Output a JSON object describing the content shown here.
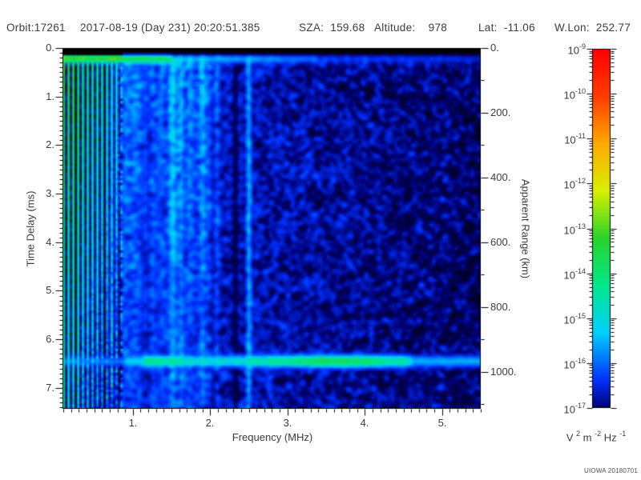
{
  "header": {
    "fields": [
      "Orbit:17261",
      "2017-08-19 (Day 231) 20:20:51.385",
      "SZA:  159.68",
      "Altitude:    978",
      "Lat:  -11.06",
      "W.Lon:  252.77"
    ]
  },
  "footer": {
    "watermark": "UIOWA 20180701"
  },
  "colors": {
    "text": "#3c3c3c",
    "frame": "#000000",
    "plot_background": "#000000"
  },
  "chart_data": {
    "type": "heatmap",
    "subtype": "radar-sounding-ionogram-spectrogram",
    "title": "Orbit:17261  2017-08-19 (Day 231) 20:20:51.385  SZA: 159.68  Altitude: 978  Lat: -11.06  W.Lon: 252.77",
    "grid": false,
    "axes": {
      "x": {
        "label": "Frequency (MHz)",
        "range": [
          0.09,
          5.5
        ],
        "major_ticks": [
          1,
          2,
          3,
          4,
          5
        ],
        "tick_labels": [
          "1.",
          "2.",
          "3.",
          "4.",
          "5."
        ],
        "minor_tick_step": 0.1
      },
      "y_left": {
        "label": "Time Delay (ms)",
        "range": [
          0,
          7.43
        ],
        "direction": "down",
        "major_ticks": [
          0,
          1,
          2,
          3,
          4,
          5,
          6,
          7
        ],
        "tick_labels": [
          "0.",
          "1.",
          "2.",
          "3.",
          "4.",
          "5.",
          "6.",
          "7."
        ],
        "minor_tick_step": 0.1
      },
      "y_right": {
        "label": "Apparent Range (km)",
        "km_per_ms": 150,
        "range_km": [
          0,
          1114
        ],
        "major_ticks_km": [
          0,
          200,
          400,
          600,
          800,
          1000
        ],
        "tick_labels": [
          "0.",
          "200.",
          "400.",
          "600.",
          "800.",
          "1000."
        ],
        "minor_tick_step_km": 100
      }
    },
    "colorbar": {
      "scale": "log",
      "tick_exponents": [
        -9,
        -10,
        -11,
        -12,
        -13,
        -14,
        -15,
        -16,
        -17
      ],
      "units_segments": [
        {
          "t": "V",
          "sup": "2"
        },
        {
          "t": "m",
          "sup": "-2"
        },
        {
          "t": "Hz",
          "sup": "-1"
        }
      ],
      "colormap_stops": [
        {
          "v": 0.0,
          "c": "#000000"
        },
        {
          "v": 0.05,
          "c": "#000070"
        },
        {
          "v": 0.125,
          "c": "#0030ff"
        },
        {
          "v": 0.25,
          "c": "#00d0ff"
        },
        {
          "v": 0.375,
          "c": "#00e88c"
        },
        {
          "v": 0.5,
          "c": "#2ad42a"
        },
        {
          "v": 0.625,
          "c": "#d8f000"
        },
        {
          "v": 0.75,
          "c": "#ffaa00"
        },
        {
          "v": 0.875,
          "c": "#ff3c00"
        },
        {
          "v": 1.0,
          "c": "#ff0000"
        }
      ]
    },
    "features": [
      {
        "type": "blackout",
        "delay_range_ms": [
          0,
          0.13
        ],
        "desc": "black strip across top before first return"
      },
      {
        "type": "horizontal-echo-line",
        "delay_ms": 0.22,
        "sigma_ms": 0.07,
        "desc": "bright green first-echo line, strongest below ~1.5 MHz, fading to faint blue at high frequency"
      },
      {
        "type": "plasma-harmonic-stripes",
        "freq_range_mhz": [
          0.09,
          0.82
        ],
        "desc": "bright green-cyan vertical harmonic stripes spanning all delays at low frequency"
      },
      {
        "type": "diffuse-streaks",
        "freq_range_mhz": [
          0.82,
          2.1
        ],
        "max_delay_ms": 5.2,
        "desc": "diffuse cyan speckled vertical streaks, upper-left quadrant"
      },
      {
        "type": "dark-vertical-line",
        "freq_mhz": 2.33,
        "halfwidth_mhz": 0.035,
        "desc": "dark dropout column near 2.33 MHz"
      },
      {
        "type": "bright-vertical-line",
        "freq_mhz": 2.5,
        "halfwidth_mhz": 0.028,
        "desc": "narrow bright cyan interference line at 2.5 MHz, all delays"
      },
      {
        "type": "surface-echo-band",
        "delay_ms": 6.45,
        "sigma_ms": 0.09,
        "core_freq_range_mhz": [
          1.15,
          4.6
        ],
        "desc": "bright cyan-green horizontal surface-reflection band near 1000 km apparent range"
      },
      {
        "type": "noise-gradient",
        "desc": "blue speckle noise on black, denser and brighter at low frequency, sparse dark patches at high frequency"
      }
    ]
  }
}
